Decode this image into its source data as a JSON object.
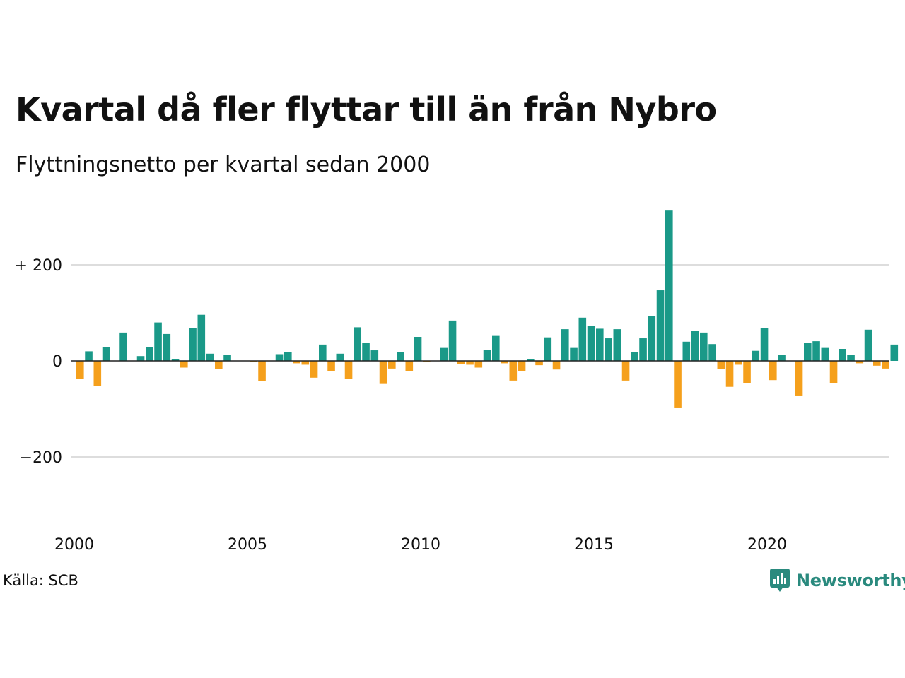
{
  "title": "Kvartal då fler flyttar till än från Nybro",
  "subtitle": "Flyttningsnetto per kvartal sedan 2000",
  "source": "Källa: SCB",
  "brand": {
    "name": "Newsworthy",
    "icon": "newsworthy-logo-icon"
  },
  "colors": {
    "positive": "#1a9988",
    "negative": "#f5a01c",
    "grid": "#dddddd",
    "zero": "#222222",
    "brand": "#2a8a7e"
  },
  "chart_data": {
    "type": "bar",
    "x_start": 2000,
    "periods_per_year": 4,
    "ylim": [
      -300,
      315
    ],
    "yticks": [
      {
        "value": 200,
        "label": "+ 200"
      },
      {
        "value": 0,
        "label": "0"
      },
      {
        "value": -200,
        "label": "−200"
      }
    ],
    "xticks": [
      {
        "value": 2000,
        "label": "2000"
      },
      {
        "value": 2005,
        "label": "2005"
      },
      {
        "value": 2010,
        "label": "2010"
      },
      {
        "value": 2015,
        "label": "2015"
      },
      {
        "value": 2020,
        "label": "2020"
      }
    ],
    "grid": true,
    "values": [
      -38,
      20,
      -52,
      28,
      0,
      59,
      0,
      10,
      28,
      80,
      56,
      3,
      -14,
      69,
      96,
      15,
      -17,
      12,
      0,
      0,
      -2,
      -42,
      0,
      14,
      18,
      -5,
      -8,
      -35,
      34,
      -22,
      15,
      -37,
      70,
      38,
      22,
      -48,
      -16,
      19,
      -21,
      50,
      -2,
      0,
      27,
      84,
      -6,
      -8,
      -14,
      23,
      52,
      -5,
      -41,
      -21,
      3,
      -9,
      49,
      -18,
      66,
      27,
      90,
      73,
      67,
      47,
      66,
      -41,
      19,
      47,
      93,
      147,
      313,
      -97,
      40,
      62,
      59,
      35,
      -17,
      -54,
      -8,
      -46,
      21,
      68,
      -40,
      12,
      0,
      -72,
      37,
      41,
      27,
      -46,
      25,
      12,
      -5,
      65,
      -10,
      -16,
      34
    ]
  }
}
